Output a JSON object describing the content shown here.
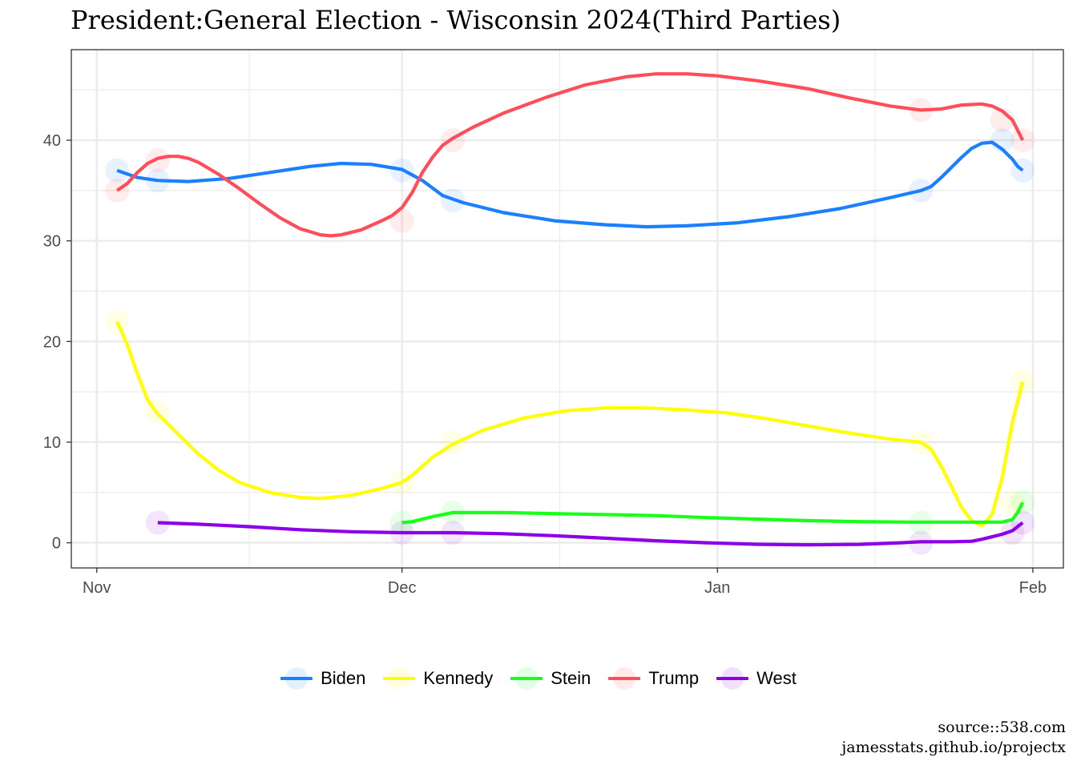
{
  "title": "President:General Election - Wisconsin 2024(Third Parties)",
  "source_lines": [
    "source::538.com",
    "jamesstats.github.io/projectx"
  ],
  "chart_data": {
    "type": "line",
    "xlabel": "",
    "ylabel": "",
    "x_ticks": [
      {
        "label": "Nov",
        "day": 0
      },
      {
        "label": "Dec",
        "day": 30
      },
      {
        "label": "Jan",
        "day": 61
      },
      {
        "label": "Feb",
        "day": 92
      }
    ],
    "y_ticks": [
      0,
      10,
      20,
      30,
      40
    ],
    "xlim": [
      -2.5,
      95
    ],
    "ylim": [
      -2.5,
      49
    ],
    "grid": true,
    "legend_position": "bottom",
    "series": [
      {
        "name": "Biden",
        "color": "#1a80ff",
        "points": [
          [
            2,
            37
          ],
          [
            6,
            36
          ],
          [
            30,
            37
          ],
          [
            35,
            34
          ],
          [
            81,
            35
          ],
          [
            89,
            40
          ],
          [
            91,
            37
          ]
        ],
        "curve": [
          [
            2,
            37
          ],
          [
            4,
            36.3
          ],
          [
            6,
            36
          ],
          [
            9,
            35.9
          ],
          [
            13,
            36.2
          ],
          [
            17,
            36.8
          ],
          [
            21,
            37.4
          ],
          [
            24,
            37.7
          ],
          [
            27,
            37.6
          ],
          [
            30,
            37.1
          ],
          [
            32,
            36
          ],
          [
            34,
            34.5
          ],
          [
            36,
            33.8
          ],
          [
            40,
            32.8
          ],
          [
            45,
            32
          ],
          [
            50,
            31.6
          ],
          [
            54,
            31.4
          ],
          [
            58,
            31.5
          ],
          [
            63,
            31.8
          ],
          [
            68,
            32.4
          ],
          [
            73,
            33.2
          ],
          [
            78,
            34.3
          ],
          [
            81,
            35
          ],
          [
            82,
            35.4
          ],
          [
            83,
            36.3
          ],
          [
            84,
            37.3
          ],
          [
            85,
            38.3
          ],
          [
            86,
            39.2
          ],
          [
            87,
            39.7
          ],
          [
            88,
            39.8
          ],
          [
            89,
            39.1
          ],
          [
            90,
            38.1
          ],
          [
            90.5,
            37.4
          ],
          [
            91,
            37
          ]
        ]
      },
      {
        "name": "Kennedy",
        "color": "#ffff00",
        "points": [
          [
            2,
            22
          ],
          [
            6,
            13
          ],
          [
            30,
            6
          ],
          [
            35,
            10
          ],
          [
            81,
            10
          ],
          [
            90,
            4
          ],
          [
            91,
            16
          ]
        ],
        "curve": [
          [
            2,
            22
          ],
          [
            3,
            19.7
          ],
          [
            4,
            16.8
          ],
          [
            5,
            14.2
          ],
          [
            6,
            12.8
          ],
          [
            8,
            10.8
          ],
          [
            10,
            8.8
          ],
          [
            12,
            7.2
          ],
          [
            14,
            6
          ],
          [
            17,
            5
          ],
          [
            20,
            4.5
          ],
          [
            22,
            4.4
          ],
          [
            25,
            4.7
          ],
          [
            28,
            5.4
          ],
          [
            30,
            6
          ],
          [
            31,
            6.7
          ],
          [
            33,
            8.5
          ],
          [
            35,
            9.8
          ],
          [
            38,
            11.2
          ],
          [
            42,
            12.4
          ],
          [
            46,
            13.1
          ],
          [
            50,
            13.4
          ],
          [
            54,
            13.4
          ],
          [
            58,
            13.2
          ],
          [
            62,
            12.9
          ],
          [
            66,
            12.3
          ],
          [
            70,
            11.6
          ],
          [
            74,
            10.9
          ],
          [
            78,
            10.3
          ],
          [
            81,
            10
          ],
          [
            82,
            9.3
          ],
          [
            83,
            7.6
          ],
          [
            84,
            5.6
          ],
          [
            85,
            3.5
          ],
          [
            86,
            2.2
          ],
          [
            87,
            1.7
          ],
          [
            88,
            2.8
          ],
          [
            89,
            6.5
          ],
          [
            90,
            12
          ],
          [
            91,
            16
          ]
        ]
      },
      {
        "name": "Stein",
        "color": "#1aff1a",
        "points": [
          [
            30,
            2
          ],
          [
            35,
            3
          ],
          [
            81,
            2
          ],
          [
            91,
            4
          ]
        ],
        "curve": [
          [
            30,
            2
          ],
          [
            31,
            2.1
          ],
          [
            33,
            2.6
          ],
          [
            35,
            3
          ],
          [
            40,
            3
          ],
          [
            45,
            2.9
          ],
          [
            50,
            2.8
          ],
          [
            55,
            2.7
          ],
          [
            60,
            2.5
          ],
          [
            65,
            2.35
          ],
          [
            70,
            2.2
          ],
          [
            75,
            2.1
          ],
          [
            80,
            2.05
          ],
          [
            85,
            2.05
          ],
          [
            89,
            2.05
          ],
          [
            90,
            2.3
          ],
          [
            90.5,
            3
          ],
          [
            91,
            4
          ]
        ]
      },
      {
        "name": "Trump",
        "color": "#ff4d59",
        "points": [
          [
            2,
            35
          ],
          [
            6,
            38
          ],
          [
            30,
            32
          ],
          [
            35,
            40
          ],
          [
            81,
            43
          ],
          [
            89,
            42
          ],
          [
            91,
            40
          ]
        ],
        "curve": [
          [
            2,
            35
          ],
          [
            3,
            35.7
          ],
          [
            4,
            36.8
          ],
          [
            5,
            37.7
          ],
          [
            6,
            38.2
          ],
          [
            7,
            38.4
          ],
          [
            8,
            38.4
          ],
          [
            9,
            38.2
          ],
          [
            10,
            37.8
          ],
          [
            12,
            36.6
          ],
          [
            14,
            35.2
          ],
          [
            16,
            33.7
          ],
          [
            18,
            32.3
          ],
          [
            20,
            31.2
          ],
          [
            22,
            30.6
          ],
          [
            23,
            30.5
          ],
          [
            24,
            30.6
          ],
          [
            26,
            31.1
          ],
          [
            28,
            32
          ],
          [
            29,
            32.5
          ],
          [
            30,
            33.3
          ],
          [
            31,
            34.8
          ],
          [
            32,
            36.8
          ],
          [
            33,
            38.3
          ],
          [
            34,
            39.5
          ],
          [
            35,
            40.2
          ],
          [
            37,
            41.3
          ],
          [
            40,
            42.7
          ],
          [
            44,
            44.2
          ],
          [
            48,
            45.5
          ],
          [
            52,
            46.3
          ],
          [
            55,
            46.6
          ],
          [
            58,
            46.6
          ],
          [
            61,
            46.4
          ],
          [
            65,
            45.9
          ],
          [
            70,
            45.1
          ],
          [
            74,
            44.2
          ],
          [
            78,
            43.4
          ],
          [
            81,
            43
          ],
          [
            83,
            43.1
          ],
          [
            85,
            43.5
          ],
          [
            87,
            43.6
          ],
          [
            88,
            43.4
          ],
          [
            89,
            42.9
          ],
          [
            90,
            42
          ],
          [
            90.5,
            41
          ],
          [
            91,
            40
          ]
        ]
      },
      {
        "name": "West",
        "color": "#8c00e6",
        "points": [
          [
            6,
            2
          ],
          [
            30,
            1
          ],
          [
            35,
            1
          ],
          [
            81,
            0
          ],
          [
            90,
            1
          ],
          [
            91,
            2
          ]
        ],
        "curve": [
          [
            6,
            2
          ],
          [
            10,
            1.85
          ],
          [
            15,
            1.6
          ],
          [
            20,
            1.3
          ],
          [
            25,
            1.1
          ],
          [
            30,
            1
          ],
          [
            35,
            1
          ],
          [
            40,
            0.9
          ],
          [
            45,
            0.7
          ],
          [
            50,
            0.45
          ],
          [
            55,
            0.2
          ],
          [
            60,
            0
          ],
          [
            65,
            -0.15
          ],
          [
            70,
            -0.2
          ],
          [
            75,
            -0.15
          ],
          [
            79,
            0
          ],
          [
            81,
            0.1
          ],
          [
            84,
            0.1
          ],
          [
            86,
            0.15
          ],
          [
            87,
            0.35
          ],
          [
            88,
            0.6
          ],
          [
            89,
            0.85
          ],
          [
            90,
            1.2
          ],
          [
            91,
            2
          ]
        ]
      }
    ]
  }
}
